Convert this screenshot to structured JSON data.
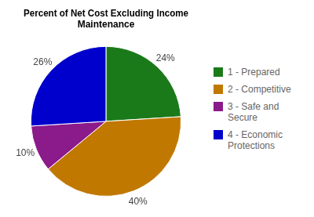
{
  "chart_data": {
    "type": "pie",
    "title": "Percent of Net Cost Excluding Income\nMaintenance",
    "categories": [
      "1 - Prepared",
      "2 - Competitive",
      "3 - Safe and Secure",
      "4 - Economic\nProtections"
    ],
    "values": [
      24,
      40,
      10,
      26
    ],
    "value_labels": [
      "24%",
      "40%",
      "10%",
      "26%"
    ],
    "colors": [
      "#1a7a1a",
      "#c07800",
      "#8b1a8b",
      "#0000cc"
    ],
    "data_labels": true,
    "legend": "right"
  }
}
